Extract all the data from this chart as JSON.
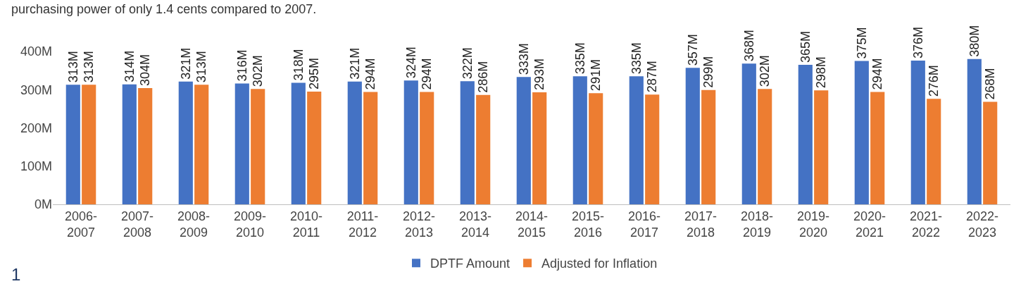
{
  "chart_data": {
    "type": "bar",
    "categories": [
      "2006-2007",
      "2007-2008",
      "2008-2009",
      "2009-2010",
      "2010-2011",
      "2011-2012",
      "2012-2013",
      "2013-2014",
      "2014-2015",
      "2015-2016",
      "2016-2017",
      "2017-2018",
      "2018-2019",
      "2019-2020",
      "2020-2021",
      "2021-2022",
      "2022-2023"
    ],
    "series": [
      {
        "name": "DPTF Amount",
        "color": "#4472c4",
        "values": [
          313,
          314,
          321,
          316,
          318,
          321,
          324,
          322,
          333,
          335,
          335,
          357,
          368,
          365,
          375,
          376,
          380
        ],
        "value_labels": [
          "313M",
          "314M",
          "321M",
          "316M",
          "318M",
          "321M",
          "324M",
          "322M",
          "333M",
          "335M",
          "335M",
          "357M",
          "368M",
          "365M",
          "375M",
          "376M",
          "380M"
        ]
      },
      {
        "name": "Adjusted for Inflation",
        "color": "#ed7d31",
        "values": [
          313,
          304,
          313,
          302,
          295,
          294,
          294,
          286,
          293,
          291,
          287,
          299,
          302,
          298,
          294,
          276,
          268
        ],
        "value_labels": [
          "313M",
          "304M",
          "313M",
          "302M",
          "295M",
          "294M",
          "294M",
          "286M",
          "293M",
          "291M",
          "287M",
          "299M",
          "302M",
          "298M",
          "294M",
          "276M",
          "268M"
        ]
      }
    ],
    "ylim": [
      0,
      400
    ],
    "yticks": [
      {
        "value": 0,
        "label": "0M"
      },
      {
        "value": 100,
        "label": "100M"
      },
      {
        "value": 200,
        "label": "200M"
      },
      {
        "value": 300,
        "label": "300M"
      },
      {
        "value": 400,
        "label": "400M"
      }
    ],
    "legend": "bottom",
    "annotations": [
      "purchasing power of only 1.4 cents compared to 2007.",
      "1"
    ]
  }
}
